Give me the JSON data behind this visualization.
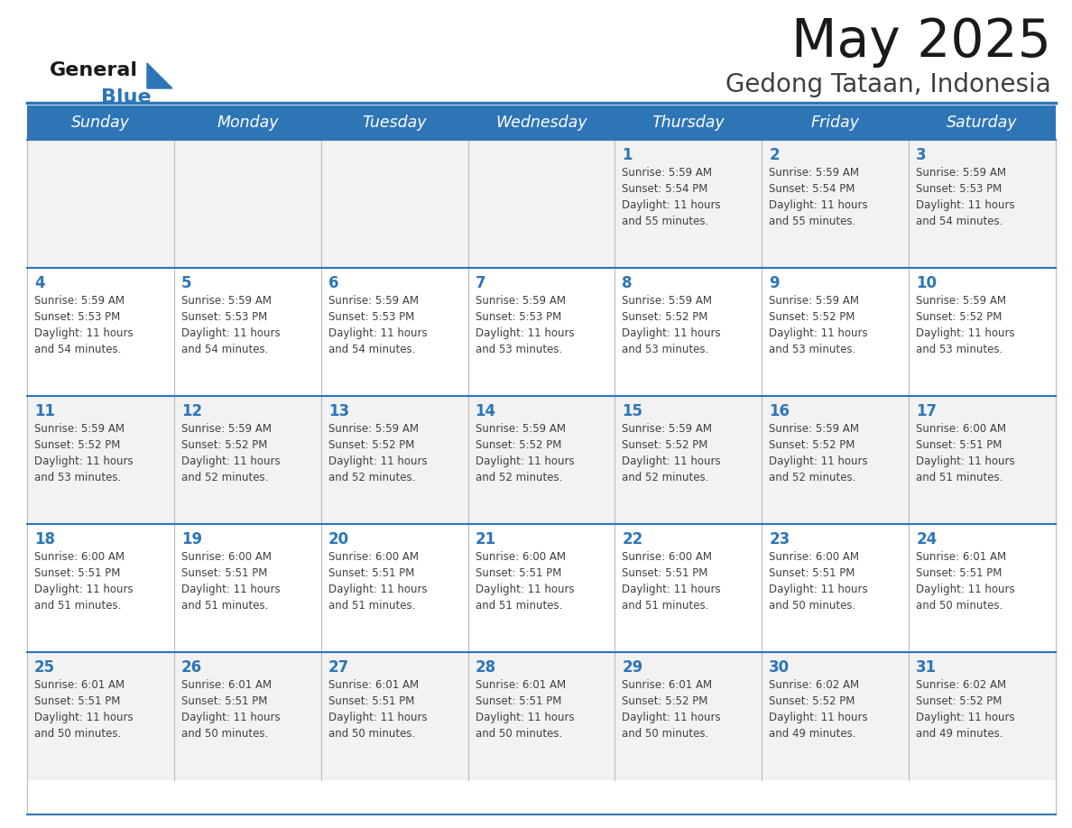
{
  "title": "May 2025",
  "subtitle": "Gedong Tataan, Indonesia",
  "days_of_week": [
    "Sunday",
    "Monday",
    "Tuesday",
    "Wednesday",
    "Thursday",
    "Friday",
    "Saturday"
  ],
  "header_bg_color": "#2E75B6",
  "header_text_color": "#FFFFFF",
  "cell_bg_color": "#F2F2F2",
  "cell_alt_bg_color": "#FFFFFF",
  "border_color": "#2E75B6",
  "day_number_color": "#2E75B6",
  "cell_text_color": "#404040",
  "title_color": "#1a1a1a",
  "subtitle_color": "#404040",
  "logo_general_color": "#1a1a1a",
  "logo_blue_color": "#2E75B6",
  "calendar_data": [
    [
      null,
      null,
      null,
      null,
      {
        "day": 1,
        "sunrise": "5:59 AM",
        "sunset": "5:54 PM",
        "daylight": "11 hours and 55 minutes."
      },
      {
        "day": 2,
        "sunrise": "5:59 AM",
        "sunset": "5:54 PM",
        "daylight": "11 hours and 55 minutes."
      },
      {
        "day": 3,
        "sunrise": "5:59 AM",
        "sunset": "5:53 PM",
        "daylight": "11 hours and 54 minutes."
      }
    ],
    [
      {
        "day": 4,
        "sunrise": "5:59 AM",
        "sunset": "5:53 PM",
        "daylight": "11 hours and 54 minutes."
      },
      {
        "day": 5,
        "sunrise": "5:59 AM",
        "sunset": "5:53 PM",
        "daylight": "11 hours and 54 minutes."
      },
      {
        "day": 6,
        "sunrise": "5:59 AM",
        "sunset": "5:53 PM",
        "daylight": "11 hours and 54 minutes."
      },
      {
        "day": 7,
        "sunrise": "5:59 AM",
        "sunset": "5:53 PM",
        "daylight": "11 hours and 53 minutes."
      },
      {
        "day": 8,
        "sunrise": "5:59 AM",
        "sunset": "5:52 PM",
        "daylight": "11 hours and 53 minutes."
      },
      {
        "day": 9,
        "sunrise": "5:59 AM",
        "sunset": "5:52 PM",
        "daylight": "11 hours and 53 minutes."
      },
      {
        "day": 10,
        "sunrise": "5:59 AM",
        "sunset": "5:52 PM",
        "daylight": "11 hours and 53 minutes."
      }
    ],
    [
      {
        "day": 11,
        "sunrise": "5:59 AM",
        "sunset": "5:52 PM",
        "daylight": "11 hours and 53 minutes."
      },
      {
        "day": 12,
        "sunrise": "5:59 AM",
        "sunset": "5:52 PM",
        "daylight": "11 hours and 52 minutes."
      },
      {
        "day": 13,
        "sunrise": "5:59 AM",
        "sunset": "5:52 PM",
        "daylight": "11 hours and 52 minutes."
      },
      {
        "day": 14,
        "sunrise": "5:59 AM",
        "sunset": "5:52 PM",
        "daylight": "11 hours and 52 minutes."
      },
      {
        "day": 15,
        "sunrise": "5:59 AM",
        "sunset": "5:52 PM",
        "daylight": "11 hours and 52 minutes."
      },
      {
        "day": 16,
        "sunrise": "5:59 AM",
        "sunset": "5:52 PM",
        "daylight": "11 hours and 52 minutes."
      },
      {
        "day": 17,
        "sunrise": "6:00 AM",
        "sunset": "5:51 PM",
        "daylight": "11 hours and 51 minutes."
      }
    ],
    [
      {
        "day": 18,
        "sunrise": "6:00 AM",
        "sunset": "5:51 PM",
        "daylight": "11 hours and 51 minutes."
      },
      {
        "day": 19,
        "sunrise": "6:00 AM",
        "sunset": "5:51 PM",
        "daylight": "11 hours and 51 minutes."
      },
      {
        "day": 20,
        "sunrise": "6:00 AM",
        "sunset": "5:51 PM",
        "daylight": "11 hours and 51 minutes."
      },
      {
        "day": 21,
        "sunrise": "6:00 AM",
        "sunset": "5:51 PM",
        "daylight": "11 hours and 51 minutes."
      },
      {
        "day": 22,
        "sunrise": "6:00 AM",
        "sunset": "5:51 PM",
        "daylight": "11 hours and 51 minutes."
      },
      {
        "day": 23,
        "sunrise": "6:00 AM",
        "sunset": "5:51 PM",
        "daylight": "11 hours and 50 minutes."
      },
      {
        "day": 24,
        "sunrise": "6:01 AM",
        "sunset": "5:51 PM",
        "daylight": "11 hours and 50 minutes."
      }
    ],
    [
      {
        "day": 25,
        "sunrise": "6:01 AM",
        "sunset": "5:51 PM",
        "daylight": "11 hours and 50 minutes."
      },
      {
        "day": 26,
        "sunrise": "6:01 AM",
        "sunset": "5:51 PM",
        "daylight": "11 hours and 50 minutes."
      },
      {
        "day": 27,
        "sunrise": "6:01 AM",
        "sunset": "5:51 PM",
        "daylight": "11 hours and 50 minutes."
      },
      {
        "day": 28,
        "sunrise": "6:01 AM",
        "sunset": "5:51 PM",
        "daylight": "11 hours and 50 minutes."
      },
      {
        "day": 29,
        "sunrise": "6:01 AM",
        "sunset": "5:52 PM",
        "daylight": "11 hours and 50 minutes."
      },
      {
        "day": 30,
        "sunrise": "6:02 AM",
        "sunset": "5:52 PM",
        "daylight": "11 hours and 49 minutes."
      },
      {
        "day": 31,
        "sunrise": "6:02 AM",
        "sunset": "5:52 PM",
        "daylight": "11 hours and 49 minutes."
      }
    ]
  ]
}
